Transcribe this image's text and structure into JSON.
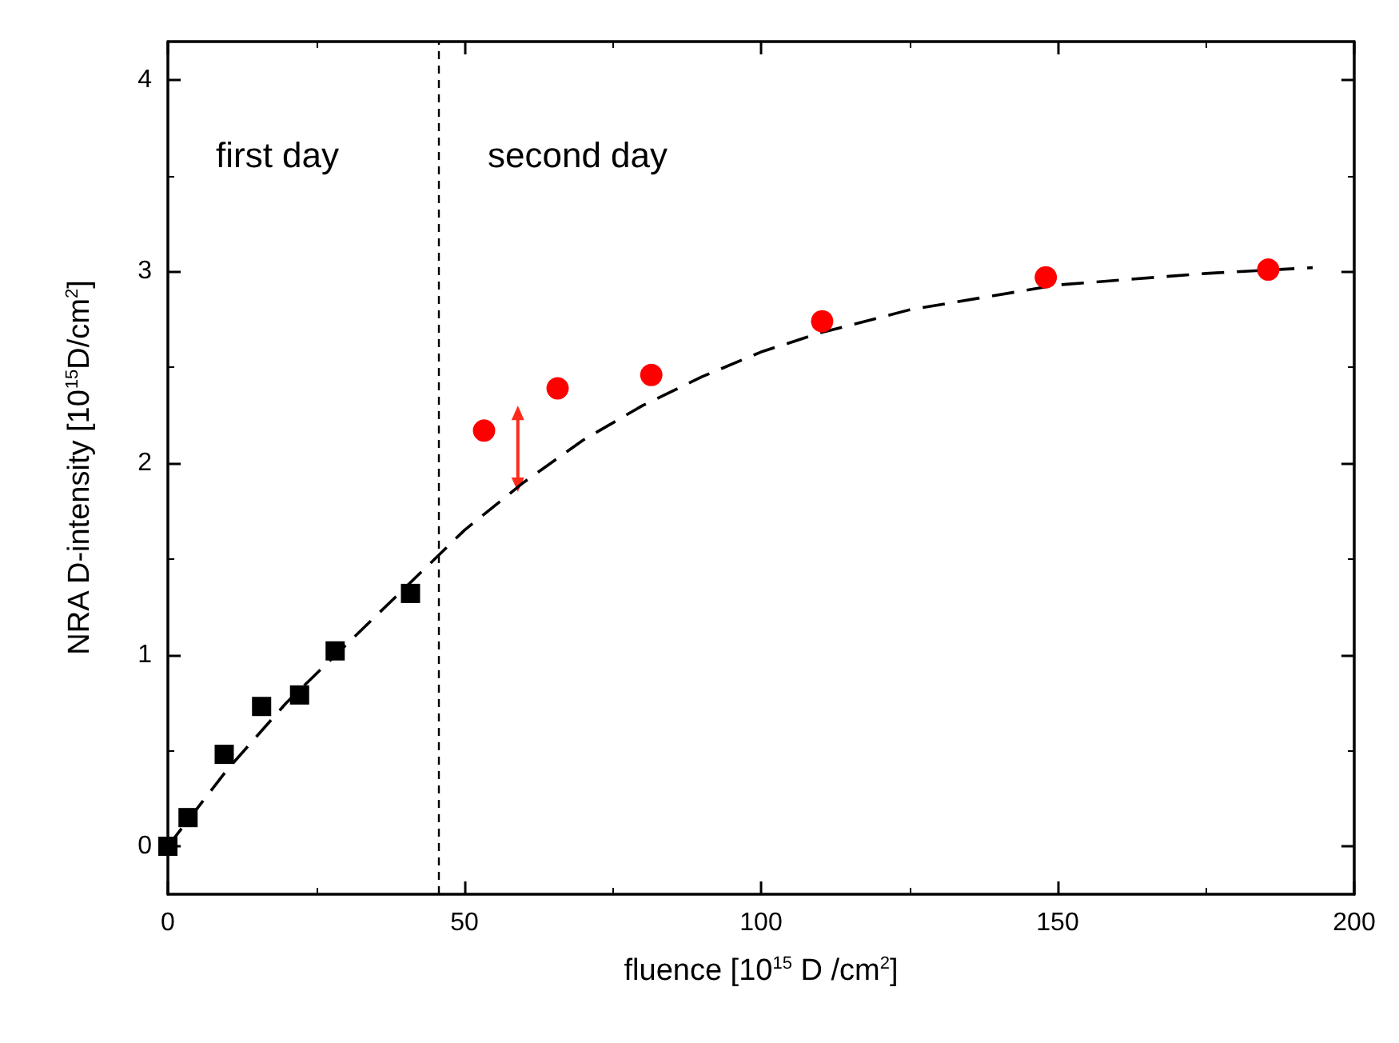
{
  "chart_data": {
    "type": "scatter",
    "xlabel": "fluence [10$^{15}$ D /cm$^{2}$]",
    "ylabel": "NRA D-intensity [10$^{15}$D/cm$^{2}$]",
    "xlim": [
      0,
      200
    ],
    "xticks": [
      0,
      50,
      100,
      150,
      200
    ],
    "ylim": [
      -0.25,
      4.2
    ],
    "yticks": [
      0,
      1,
      2,
      3,
      4
    ],
    "series": [
      {
        "type": "line",
        "marker": "none",
        "line_style": "dashed",
        "color": "#000000",
        "x": [
          0,
          10,
          20,
          30,
          40,
          45,
          50,
          60,
          70,
          80,
          90,
          100,
          110,
          125,
          150,
          175,
          193
        ],
        "values": [
          0,
          0.4,
          0.75,
          1.05,
          1.35,
          1.5,
          1.65,
          1.9,
          2.12,
          2.3,
          2.45,
          2.58,
          2.68,
          2.8,
          2.93,
          2.99,
          3.02
        ]
      },
      {
        "marker": "square",
        "color": "#000000",
        "x": [
          0,
          3.4,
          9.5,
          15.8,
          22.2,
          28.2,
          40.9
        ],
        "values": [
          0.0,
          0.15,
          0.48,
          0.73,
          0.79,
          1.02,
          1.32
        ]
      },
      {
        "marker": "circle",
        "color": "#ff0000",
        "x": [
          53.3,
          65.7,
          81.5,
          110.3,
          148,
          185.5
        ],
        "values": [
          2.17,
          2.39,
          2.46,
          2.74,
          2.97,
          3.01
        ]
      }
    ],
    "ref_lines": [
      {
        "axis": "x",
        "value": 45.6,
        "line_style": "dashed",
        "color": "#000000"
      }
    ],
    "annotations": [
      "first day",
      "second day"
    ]
  }
}
